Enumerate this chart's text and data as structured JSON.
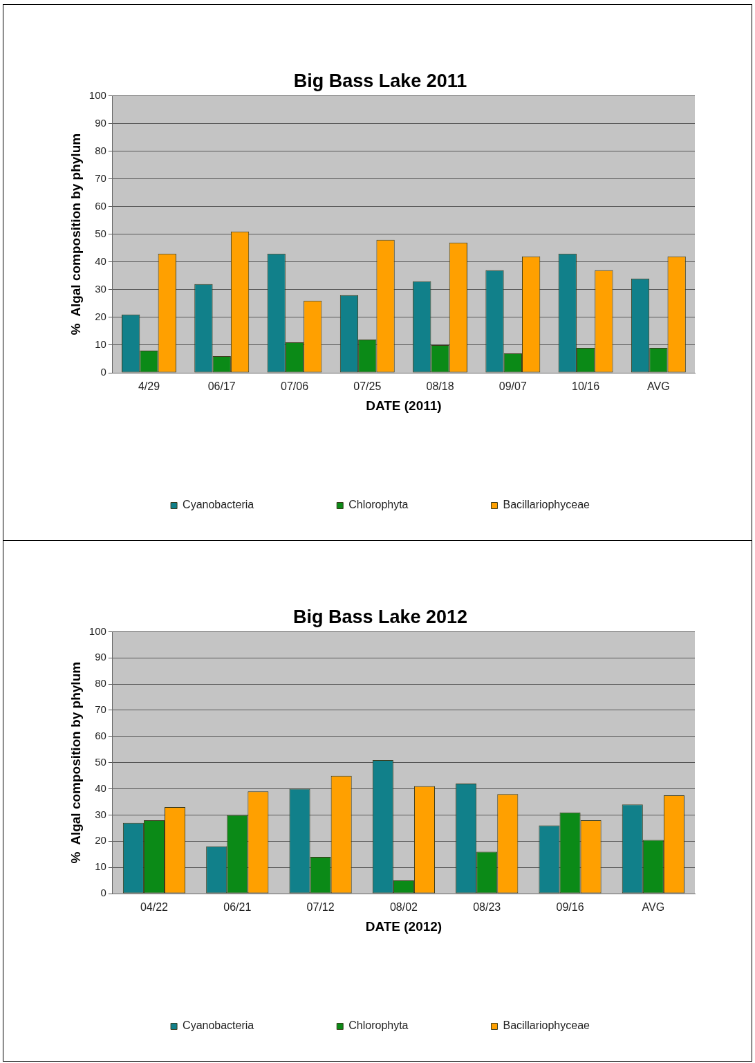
{
  "chart_data": [
    {
      "type": "bar",
      "title": "Big Bass Lake 2011",
      "xlabel": "DATE (2011)",
      "ylabel": "%  Algal composition by phylum",
      "categories": [
        "4/29",
        "06/17",
        "07/06",
        "07/25",
        "08/18",
        "09/07",
        "10/16",
        "AVG"
      ],
      "series": [
        {
          "name": "Cyanobacteria",
          "color": "#11808a",
          "values": [
            21,
            32,
            43,
            28,
            33,
            37,
            43,
            34
          ]
        },
        {
          "name": "Chlorophyta",
          "color": "#0b8a17",
          "values": [
            8,
            6,
            11,
            12,
            10,
            7,
            9,
            9
          ]
        },
        {
          "name": "Bacillariophyceae",
          "color": "#ffa000",
          "values": [
            43,
            51,
            26,
            48,
            47,
            42,
            37,
            42
          ]
        }
      ],
      "ylim": [
        0,
        100
      ],
      "yticks": [
        0,
        10,
        20,
        30,
        40,
        50,
        60,
        70,
        80,
        90,
        100
      ],
      "grid": "y",
      "legend": "bottom"
    },
    {
      "type": "bar",
      "title": "Big Bass Lake 2012",
      "xlabel": "DATE (2012)",
      "ylabel": "%  Algal composition by phylum",
      "categories": [
        "04/22",
        "06/21",
        "07/12",
        "08/02",
        "08/23",
        "09/16",
        "AVG"
      ],
      "series": [
        {
          "name": "Cyanobacteria",
          "color": "#11808a",
          "values": [
            27,
            18,
            40,
            51,
            42,
            26,
            34
          ]
        },
        {
          "name": "Chlorophyta",
          "color": "#0b8a17",
          "values": [
            28,
            30,
            14,
            5,
            16,
            31,
            20.5
          ]
        },
        {
          "name": "Bacillariophyceae",
          "color": "#ffa000",
          "values": [
            33,
            39,
            45,
            41,
            38,
            28,
            37.5
          ]
        }
      ],
      "ylim": [
        0,
        100
      ],
      "yticks": [
        0,
        10,
        20,
        30,
        40,
        50,
        60,
        70,
        80,
        90,
        100
      ],
      "grid": "y",
      "legend": "bottom"
    }
  ]
}
